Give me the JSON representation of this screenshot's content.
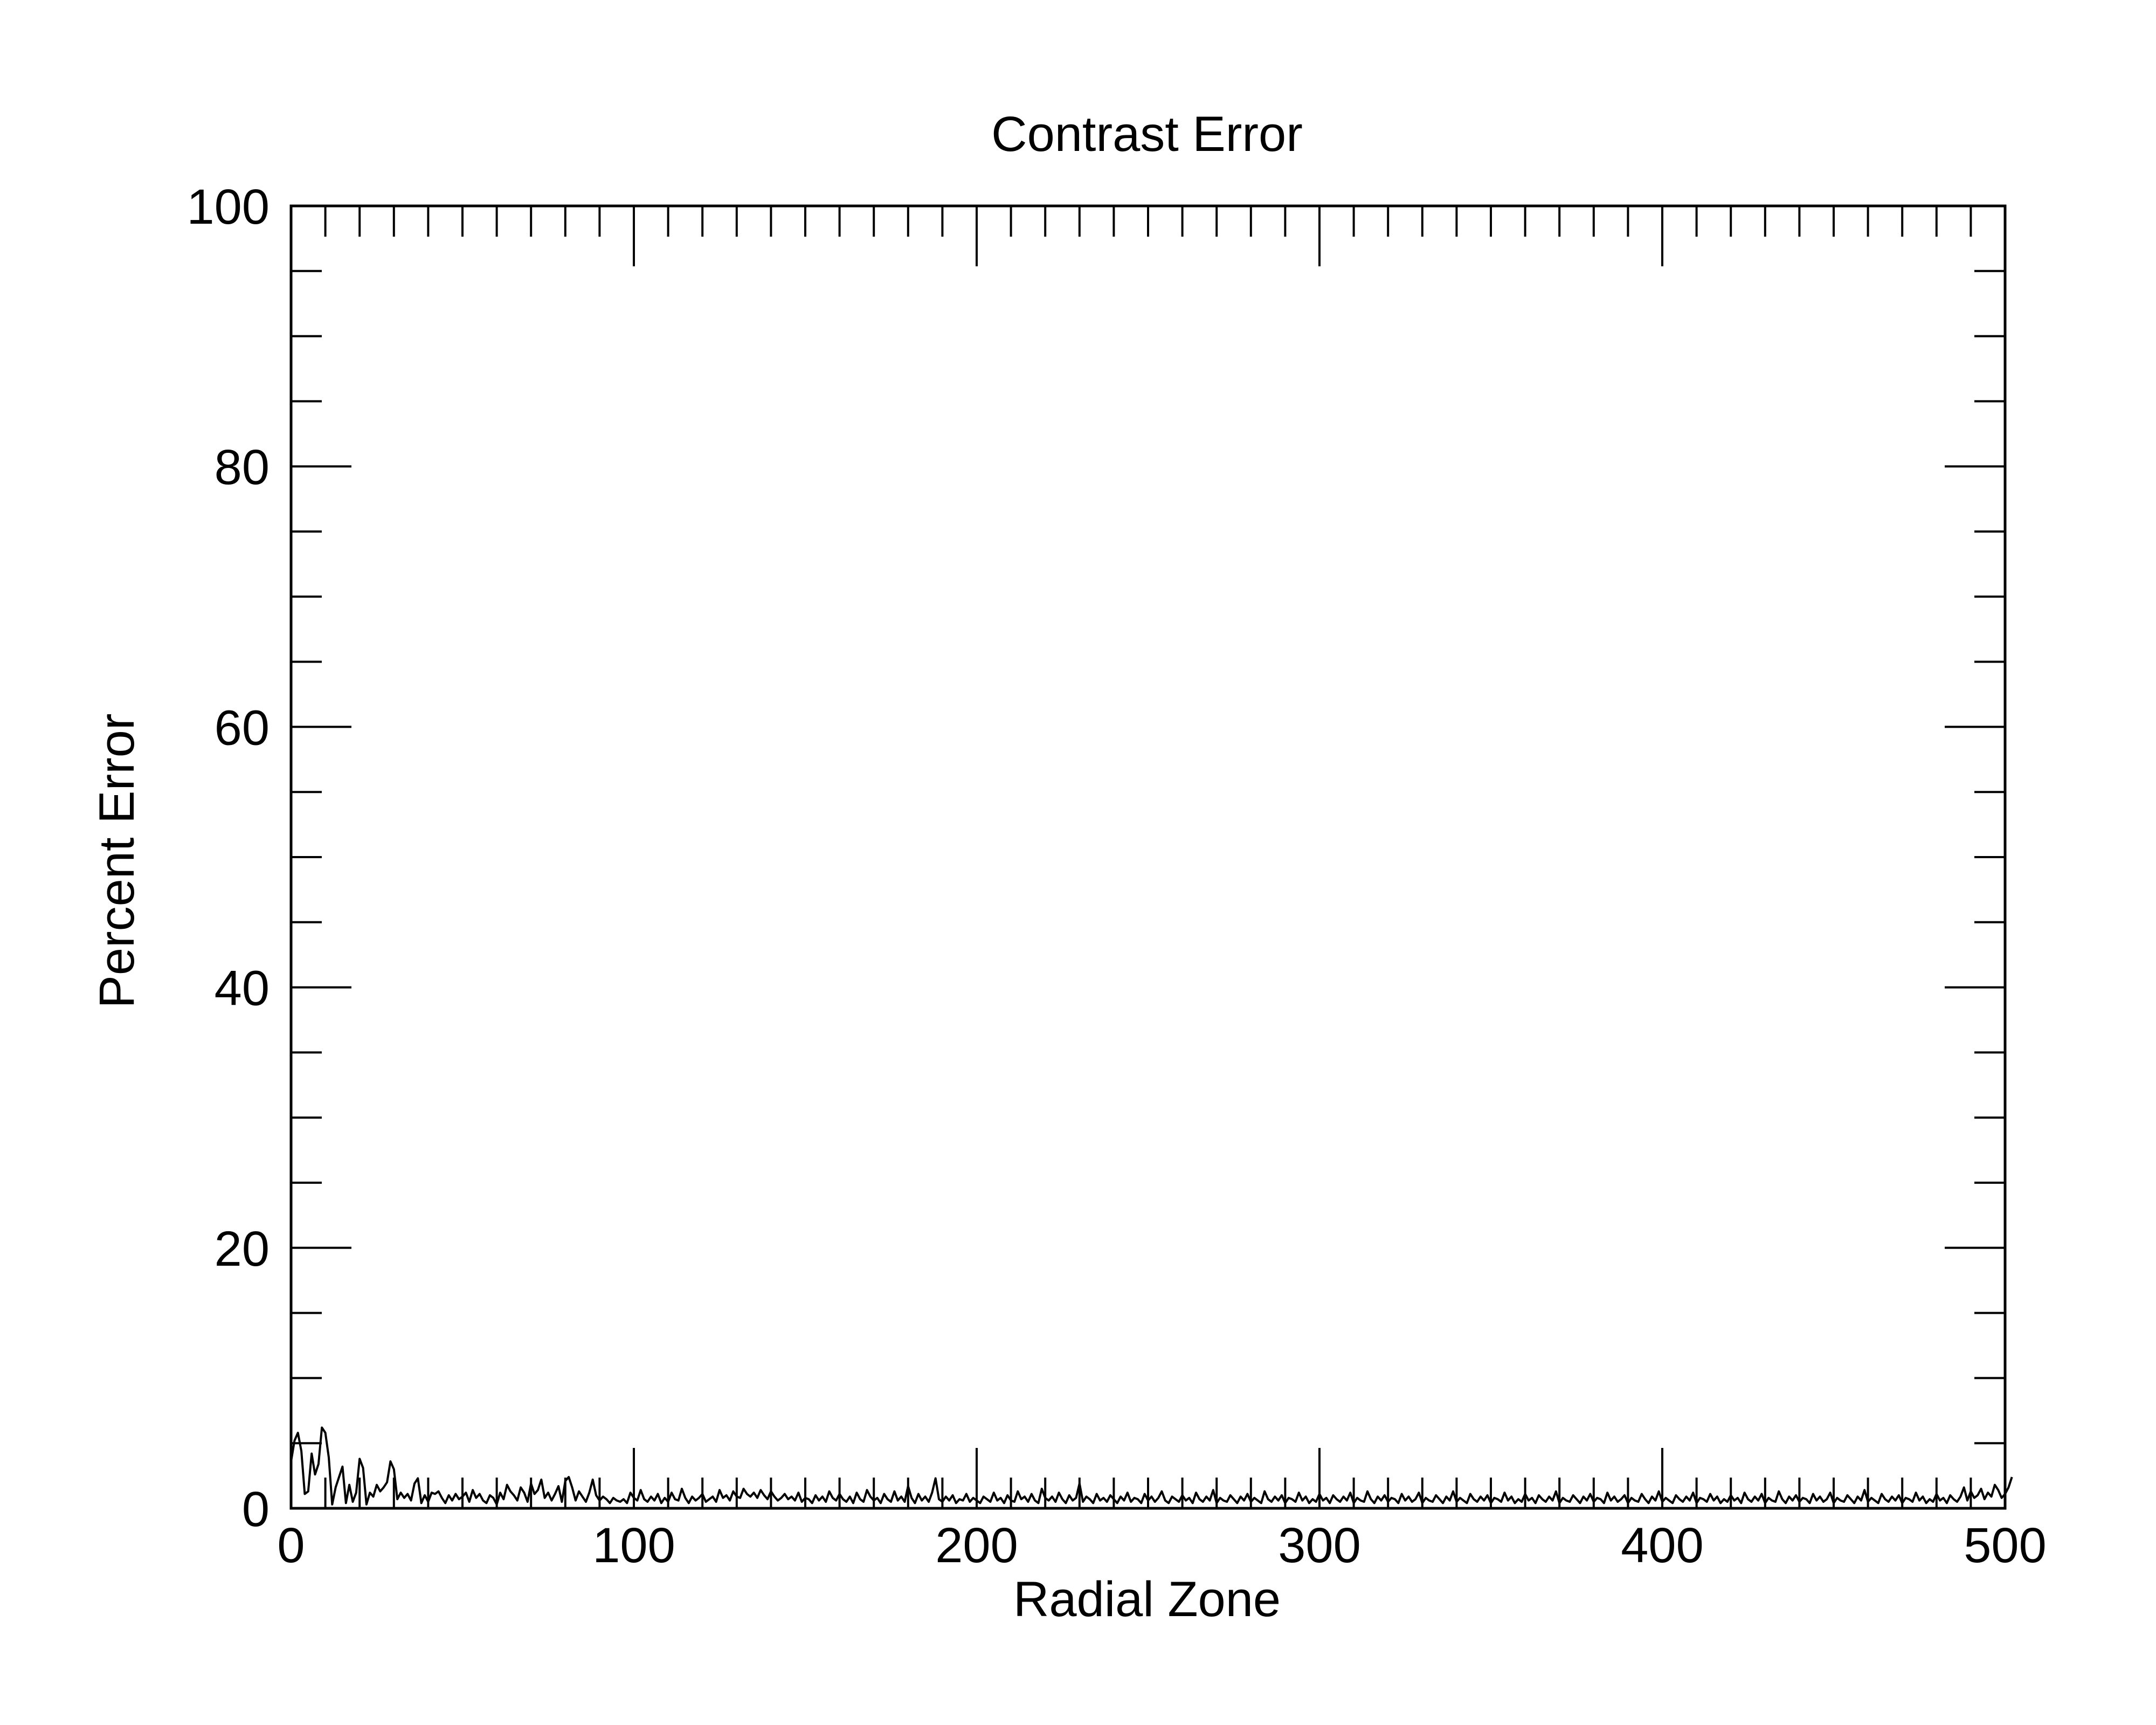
{
  "chart_data": {
    "type": "line",
    "title": "Contrast Error",
    "xlabel": "Radial Zone",
    "ylabel": "Percent Error",
    "xlim": [
      0,
      500
    ],
    "ylim": [
      0,
      100
    ],
    "x_major_ticks": [
      0,
      100,
      200,
      300,
      400,
      500
    ],
    "x_tick_labels": [
      "0",
      "100",
      "200",
      "300",
      "400",
      "500"
    ],
    "x_minor_step": 10,
    "y_major_ticks": [
      0,
      20,
      40,
      60,
      80,
      100
    ],
    "y_tick_labels": [
      "0",
      "20",
      "40",
      "60",
      "80",
      "100"
    ],
    "y_minor_step": 5,
    "grid": false,
    "line_color": "#000000",
    "series": [
      {
        "x_start": 0,
        "x_step": 1,
        "values": [
          3.6,
          5.2,
          5.8,
          4.4,
          1.1,
          1.3,
          4.2,
          2.6,
          3.4,
          6.2,
          5.8,
          3.9,
          0.3,
          1.6,
          2.4,
          3.2,
          0.4,
          1.8,
          0.5,
          1.2,
          3.8,
          3.1,
          0.3,
          1.2,
          0.9,
          1.8,
          1.3,
          1.6,
          2.0,
          3.6,
          3.0,
          0.7,
          1.2,
          0.8,
          1.1,
          0.6,
          1.9,
          2.3,
          0.4,
          1.0,
          0.5,
          1.2,
          1.1,
          1.3,
          0.8,
          0.4,
          1.0,
          0.6,
          1.1,
          0.7,
          0.9,
          1.2,
          0.5,
          1.4,
          0.8,
          1.1,
          0.6,
          0.4,
          1.0,
          0.8,
          0.3,
          1.2,
          0.7,
          1.8,
          1.3,
          1.0,
          0.6,
          1.6,
          1.2,
          0.5,
          1.9,
          1.1,
          1.4,
          2.2,
          0.8,
          1.2,
          0.6,
          1.1,
          1.7,
          0.5,
          2.1,
          2.4,
          1.6,
          0.6,
          1.3,
          0.9,
          0.5,
          1.2,
          2.2,
          1.0,
          0.6,
          0.9,
          0.7,
          0.4,
          0.8,
          0.6,
          0.5,
          0.7,
          0.4,
          1.2,
          0.8,
          0.6,
          1.4,
          0.7,
          0.5,
          0.9,
          0.6,
          1.1,
          0.4,
          0.8,
          0.5,
          1.2,
          0.7,
          0.6,
          1.5,
          0.8,
          0.4,
          0.9,
          0.6,
          0.8,
          1.1,
          0.5,
          0.7,
          0.9,
          0.5,
          1.4,
          0.8,
          1.0,
          0.6,
          1.3,
          0.9,
          0.8,
          1.5,
          1.1,
          0.9,
          1.2,
          0.8,
          1.4,
          1.0,
          0.7,
          1.3,
          0.9,
          0.6,
          0.8,
          1.1,
          0.7,
          0.9,
          0.6,
          1.2,
          0.5,
          0.8,
          0.7,
          0.4,
          1.0,
          0.6,
          0.9,
          0.5,
          1.3,
          0.8,
          0.6,
          1.1,
          0.7,
          0.5,
          0.9,
          0.4,
          1.2,
          0.7,
          0.5,
          1.4,
          0.9,
          0.6,
          0.8,
          0.4,
          1.1,
          0.7,
          0.5,
          1.3,
          0.6,
          0.9,
          0.5,
          1.7,
          0.8,
          0.4,
          1.1,
          0.6,
          0.9,
          0.5,
          1.2,
          2.3,
          0.7,
          0.5,
          0.9,
          0.6,
          1.0,
          0.4,
          0.7,
          0.6,
          1.1,
          0.5,
          0.8,
          0.6,
          0.4,
          0.9,
          0.7,
          0.5,
          1.2,
          0.6,
          0.8,
          0.4,
          1.0,
          0.6,
          0.5,
          1.3,
          0.7,
          0.9,
          0.5,
          1.1,
          0.6,
          0.4,
          1.5,
          0.8,
          0.6,
          0.9,
          0.5,
          1.2,
          0.7,
          0.4,
          1.0,
          0.6,
          0.8,
          1.9,
          0.5,
          0.9,
          0.7,
          0.4,
          1.1,
          0.6,
          0.8,
          0.5,
          1.0,
          0.7,
          0.4,
          0.9,
          0.6,
          1.2,
          0.5,
          0.8,
          0.7,
          0.4,
          1.1,
          0.6,
          0.9,
          0.5,
          0.8,
          1.3,
          0.6,
          0.4,
          0.9,
          0.7,
          0.5,
          1.0,
          0.6,
          0.8,
          0.4,
          1.2,
          0.7,
          0.5,
          0.9,
          0.6,
          1.4,
          0.4,
          0.8,
          0.6,
          0.5,
          1.0,
          0.7,
          0.4,
          0.9,
          0.6,
          1.1,
          0.5,
          0.8,
          0.6,
          0.4,
          1.3,
          0.7,
          0.5,
          0.9,
          0.6,
          1.0,
          0.4,
          0.8,
          0.7,
          0.5,
          1.2,
          0.6,
          0.9,
          0.4,
          0.7,
          0.5,
          1.1,
          0.6,
          0.8,
          0.4,
          1.0,
          0.7,
          0.5,
          0.9,
          0.6,
          1.2,
          0.4,
          0.8,
          0.6,
          0.5,
          1.3,
          0.7,
          0.4,
          0.9,
          0.6,
          1.0,
          0.5,
          0.8,
          0.7,
          0.4,
          1.1,
          0.6,
          0.9,
          0.5,
          0.7,
          1.2,
          0.4,
          0.8,
          0.6,
          0.5,
          1.0,
          0.7,
          0.4,
          0.9,
          0.6,
          1.3,
          0.5,
          0.8,
          0.6,
          0.4,
          1.1,
          0.7,
          0.5,
          0.9,
          0.6,
          1.0,
          0.4,
          0.8,
          0.7,
          0.5,
          1.2,
          0.6,
          0.9,
          0.4,
          0.7,
          0.5,
          1.1,
          0.6,
          0.8,
          0.4,
          1.0,
          0.7,
          0.5,
          0.9,
          0.6,
          1.3,
          0.4,
          0.8,
          0.6,
          0.5,
          1.0,
          0.7,
          0.4,
          0.9,
          0.6,
          1.1,
          0.5,
          0.8,
          0.7,
          0.4,
          1.2,
          0.6,
          0.9,
          0.5,
          0.7,
          1.0,
          0.4,
          0.8,
          0.6,
          0.5,
          1.1,
          0.7,
          0.4,
          0.9,
          0.6,
          1.3,
          0.5,
          0.8,
          0.6,
          0.4,
          1.0,
          0.7,
          0.5,
          0.9,
          0.6,
          1.2,
          0.4,
          0.8,
          0.7,
          0.5,
          1.1,
          0.6,
          0.9,
          0.4,
          0.7,
          0.5,
          1.0,
          0.6,
          0.8,
          0.4,
          1.2,
          0.7,
          0.5,
          0.9,
          0.6,
          1.1,
          0.4,
          0.8,
          0.6,
          0.5,
          1.3,
          0.7,
          0.4,
          0.9,
          0.6,
          1.0,
          0.5,
          0.8,
          0.7,
          0.4,
          1.1,
          0.6,
          0.9,
          0.5,
          0.7,
          1.2,
          0.4,
          0.8,
          0.6,
          0.5,
          1.0,
          0.7,
          0.4,
          0.9,
          0.6,
          1.4,
          0.5,
          0.8,
          0.6,
          0.4,
          1.1,
          0.7,
          0.5,
          0.9,
          0.6,
          1.0,
          0.4,
          0.8,
          0.7,
          0.5,
          1.2,
          0.6,
          0.9,
          0.4,
          0.7,
          0.5,
          1.1,
          0.6,
          0.8,
          0.4,
          1.0,
          0.7,
          0.5,
          0.9,
          1.6,
          0.6,
          1.3,
          0.8,
          1.0,
          1.5,
          0.7,
          1.2,
          0.9,
          1.8,
          1.4,
          0.8,
          1.1,
          1.6,
          2.4
        ]
      }
    ]
  }
}
